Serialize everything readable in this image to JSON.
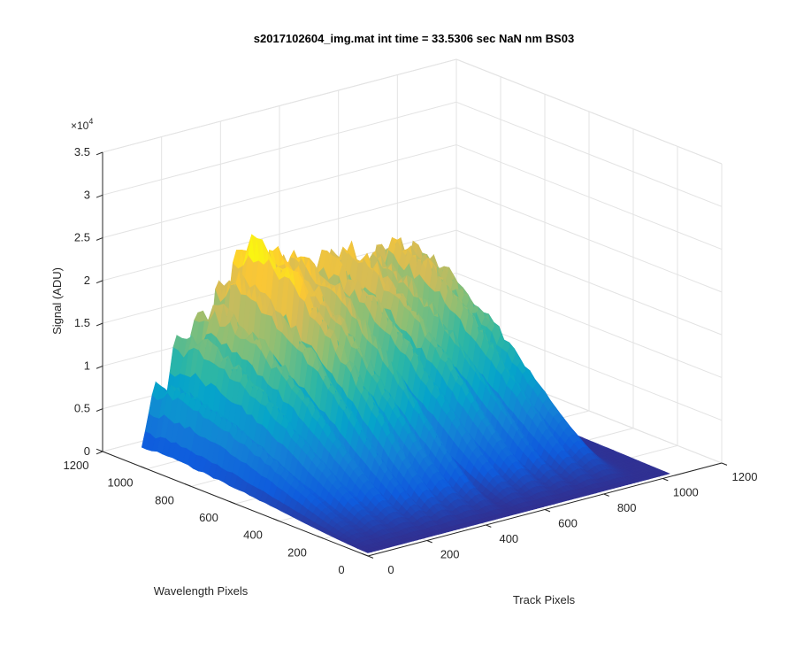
{
  "figure": {
    "title": "s2017102604_img.mat int time = 33.5306 sec  NaN nm BS03"
  },
  "chart_data": {
    "type": "surface",
    "title": "s2017102604_img.mat int time = 33.5306 sec  NaN nm BS03",
    "xlabel": "Track Pixels",
    "ylabel": "Wavelength Pixels",
    "zlabel": "Signal (ADU)",
    "z_exponent": "×10⁴",
    "xlim": [
      0,
      1200
    ],
    "ylim": [
      0,
      1200
    ],
    "zlim": [
      0,
      35000
    ],
    "x_ticks": [
      0,
      200,
      400,
      600,
      800,
      1000,
      1200
    ],
    "y_ticks": [
      0,
      200,
      400,
      600,
      800,
      1000,
      1200
    ],
    "z_ticks": [
      0,
      0.5,
      1,
      1.5,
      2,
      2.5,
      3,
      3.5
    ],
    "z_tick_scale": 10000,
    "grid": true,
    "colormap": "parula",
    "colormap_stops": [
      "#352a87",
      "#0f5cdd",
      "#1481d6",
      "#06a4ca",
      "#2eb7a4",
      "#87bf77",
      "#d1bb59",
      "#fec832",
      "#f9fb0e"
    ],
    "data_extent": {
      "track_pixels": [
        0,
        1023
      ],
      "wavelength_pixels": [
        0,
        1023
      ]
    },
    "peak_signal_approx": 24000,
    "track_band_profiles": [
      {
        "track_center": 50,
        "peak_signal": 9000,
        "notes": "leftmost low band"
      },
      {
        "track_center": 120,
        "peak_signal": 14000
      },
      {
        "track_center": 190,
        "peak_signal": 17000
      },
      {
        "track_center": 260,
        "peak_signal": 20000
      },
      {
        "track_center": 320,
        "peak_signal": 23500
      },
      {
        "track_center": 390,
        "peak_signal": 21500
      },
      {
        "track_center": 460,
        "peak_signal": 21000
      },
      {
        "track_center": 560,
        "peak_signal": 19500
      },
      {
        "track_center": 640,
        "peak_signal": 20000
      },
      {
        "track_center": 720,
        "peak_signal": 18500
      },
      {
        "track_center": 800,
        "peak_signal": 19500
      },
      {
        "track_center": 870,
        "peak_signal": 17500
      }
    ]
  }
}
